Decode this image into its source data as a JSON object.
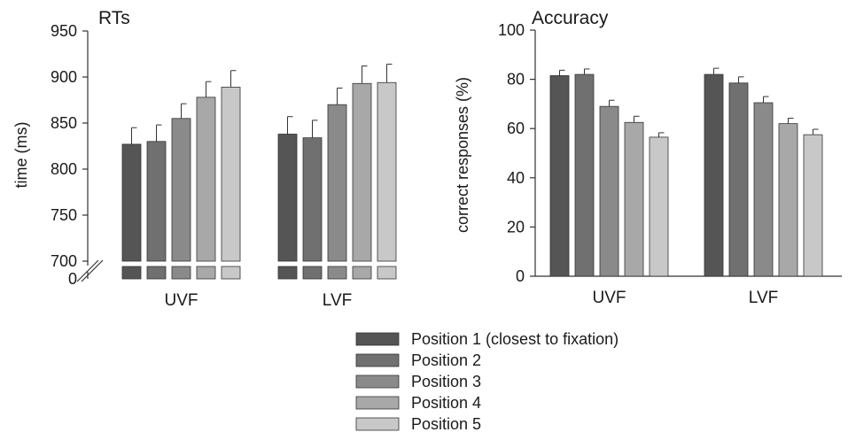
{
  "legend": [
    {
      "label": "Position 1 (closest to fixation)",
      "color": "#555555"
    },
    {
      "label": "Position 2",
      "color": "#707070"
    },
    {
      "label": "Position 3",
      "color": "#8a8a8a"
    },
    {
      "label": "Position 4",
      "color": "#a8a8a8"
    },
    {
      "label": "Position 5",
      "color": "#c8c8c8"
    }
  ],
  "chart_data": [
    {
      "type": "bar",
      "title": "RTs",
      "ylabel": "time (ms)",
      "xlabel": "",
      "categories": [
        "UVF",
        "LVF"
      ],
      "ylim": [
        700,
        950
      ],
      "axis_break": true,
      "yticks": [
        "0",
        "700",
        "750",
        "800",
        "850",
        "900",
        "950"
      ],
      "series": [
        {
          "name": "Position 1 (closest to fixation)",
          "values": [
            827,
            838
          ],
          "errors": [
            18,
            19
          ]
        },
        {
          "name": "Position 2",
          "values": [
            830,
            834
          ],
          "errors": [
            18,
            19
          ]
        },
        {
          "name": "Position 3",
          "values": [
            855,
            870
          ],
          "errors": [
            16,
            18
          ]
        },
        {
          "name": "Position 4",
          "values": [
            878,
            893
          ],
          "errors": [
            17,
            19
          ]
        },
        {
          "name": "Position 5",
          "values": [
            889,
            894
          ],
          "errors": [
            18,
            20
          ]
        }
      ]
    },
    {
      "type": "bar",
      "title": "Accuracy",
      "ylabel": "correct responses (%)",
      "xlabel": "",
      "categories": [
        "UVF",
        "LVF"
      ],
      "ylim": [
        0,
        100
      ],
      "yticks": [
        "0",
        "20",
        "40",
        "60",
        "80",
        "100"
      ],
      "series": [
        {
          "name": "Position 1 (closest to fixation)",
          "values": [
            81.5,
            82
          ],
          "errors": [
            2.2,
            2.5
          ]
        },
        {
          "name": "Position 2",
          "values": [
            82,
            78.5
          ],
          "errors": [
            2.2,
            2.5
          ]
        },
        {
          "name": "Position 3",
          "values": [
            69,
            70.5
          ],
          "errors": [
            2.5,
            2.5
          ]
        },
        {
          "name": "Position 4",
          "values": [
            62.5,
            62
          ],
          "errors": [
            2.5,
            2.2
          ]
        },
        {
          "name": "Position 5",
          "values": [
            56.5,
            57.5
          ],
          "errors": [
            1.8,
            2.2
          ]
        }
      ]
    }
  ]
}
